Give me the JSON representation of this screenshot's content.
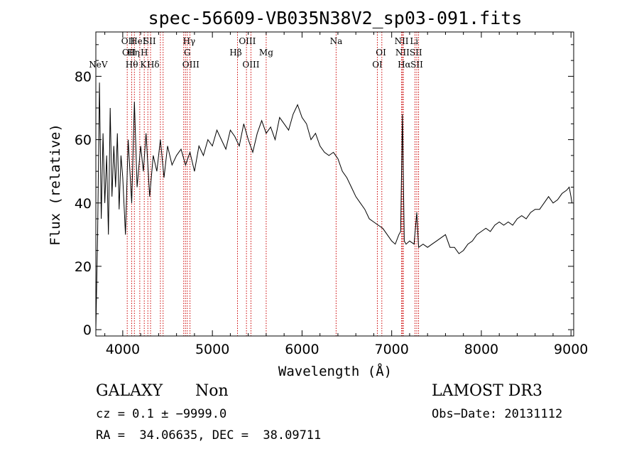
{
  "chart_data": {
    "type": "line",
    "title": "spec-56609-VB035N38V2_sp03-091.fits",
    "xlabel": "Wavelength (Å)",
    "ylabel": "Flux (relative)",
    "xlim": [
      3700,
      9030
    ],
    "ylim": [
      -2,
      94
    ],
    "xticks": [
      4000,
      5000,
      6000,
      7000,
      8000,
      9000
    ],
    "yticks": [
      0,
      20,
      40,
      60,
      80
    ],
    "spectrum": {
      "name": "flux",
      "x": [
        3700,
        3720,
        3740,
        3760,
        3780,
        3800,
        3820,
        3840,
        3860,
        3880,
        3900,
        3920,
        3940,
        3960,
        3980,
        4000,
        4030,
        4060,
        4100,
        4130,
        4160,
        4200,
        4230,
        4260,
        4300,
        4340,
        4380,
        4420,
        4460,
        4500,
        4550,
        4600,
        4650,
        4700,
        4750,
        4800,
        4850,
        4900,
        4950,
        5000,
        5050,
        5100,
        5150,
        5200,
        5250,
        5300,
        5350,
        5400,
        5450,
        5500,
        5550,
        5600,
        5650,
        5700,
        5750,
        5800,
        5850,
        5900,
        5950,
        6000,
        6050,
        6100,
        6150,
        6200,
        6250,
        6300,
        6350,
        6400,
        6450,
        6500,
        6550,
        6600,
        6650,
        6700,
        6750,
        6800,
        6850,
        6900,
        6950,
        7000,
        7040,
        7080,
        7100,
        7120,
        7140,
        7160,
        7200,
        7250,
        7280,
        7300,
        7350,
        7400,
        7450,
        7500,
        7550,
        7600,
        7650,
        7700,
        7750,
        7800,
        7850,
        7900,
        7950,
        8000,
        8050,
        8100,
        8150,
        8200,
        8250,
        8300,
        8350,
        8400,
        8450,
        8500,
        8550,
        8600,
        8650,
        8700,
        8750,
        8800,
        8850,
        8900,
        8950,
        8980,
        9000,
        9010
      ],
      "y": [
        0,
        30,
        78,
        35,
        62,
        40,
        55,
        30,
        70,
        42,
        58,
        45,
        62,
        38,
        55,
        48,
        30,
        60,
        40,
        72,
        45,
        58,
        50,
        62,
        42,
        55,
        50,
        60,
        48,
        58,
        52,
        55,
        57,
        52,
        56,
        50,
        58,
        55,
        60,
        58,
        63,
        60,
        57,
        63,
        61,
        58,
        65,
        60,
        56,
        62,
        66,
        62,
        64,
        60,
        67,
        65,
        63,
        68,
        71,
        67,
        65,
        60,
        62,
        58,
        56,
        55,
        56,
        54,
        50,
        48,
        45,
        42,
        40,
        38,
        35,
        34,
        33,
        32,
        30,
        28,
        27,
        30,
        31,
        68,
        28,
        27,
        28,
        27,
        37,
        26,
        27,
        26,
        27,
        28,
        29,
        30,
        26,
        26,
        24,
        25,
        27,
        28,
        30,
        31,
        32,
        31,
        33,
        34,
        33,
        34,
        33,
        35,
        36,
        35,
        37,
        38,
        38,
        40,
        42,
        40,
        41,
        43,
        44,
        45,
        42,
        40
      ]
    },
    "emission_lines": [
      {
        "label": "NeV",
        "x": 3727,
        "row": 3
      },
      {
        "label": "OII",
        "x": 4060,
        "row": 1
      },
      {
        "label": "OII",
        "x": 4070,
        "row": 2
      },
      {
        "label": "Hθ",
        "x": 4101,
        "row": 3
      },
      {
        "label": "Hη",
        "x": 4120,
        "row": 2
      },
      {
        "label": "HeI",
        "x": 4170,
        "row": 1
      },
      {
        "label": "H",
        "x": 4240,
        "row": 2
      },
      {
        "label": "K",
        "x": 4230,
        "row": 3
      },
      {
        "label": "SII",
        "x": 4300,
        "row": 1
      },
      {
        "label": "Hδ",
        "x": 4340,
        "row": 3
      },
      {
        "label": "Hγ",
        "x": 4740,
        "row": 1
      },
      {
        "label": "G",
        "x": 4720,
        "row": 2
      },
      {
        "label": "OIII",
        "x": 4760,
        "row": 3
      },
      {
        "label": "OIII",
        "x": 5390,
        "row": 1
      },
      {
        "label": "Hβ",
        "x": 5260,
        "row": 2
      },
      {
        "label": "OIII",
        "x": 5430,
        "row": 3
      },
      {
        "label": "Mg",
        "x": 5600,
        "row": 2
      },
      {
        "label": "Na",
        "x": 6380,
        "row": 1
      },
      {
        "label": "OI",
        "x": 6880,
        "row": 2
      },
      {
        "label": "OI",
        "x": 6840,
        "row": 3
      },
      {
        "label": "NII",
        "x": 7110,
        "row": 1
      },
      {
        "label": "NII",
        "x": 7120,
        "row": 2
      },
      {
        "label": "Hα",
        "x": 7140,
        "row": 3
      },
      {
        "label": "SII",
        "x": 7270,
        "row": 2
      },
      {
        "label": "SII",
        "x": 7280,
        "row": 3
      },
      {
        "label": "Li",
        "x": 7250,
        "row": 1
      }
    ],
    "line_markers_x": [
      4050,
      4100,
      4130,
      4190,
      4240,
      4280,
      4310,
      4420,
      4450,
      4680,
      4700,
      4720,
      4750,
      5280,
      5380,
      5430,
      5600,
      6380,
      6840,
      6890,
      7110,
      7120,
      7130,
      7260,
      7280,
      7300
    ]
  },
  "info": {
    "class": "GALAXY",
    "subclass": "Non",
    "survey": "LAMOST DR3",
    "cz": "cz = 0.1 ± −9999.0",
    "obs_date": "Obs−Date: 20131112",
    "coords": "RA =  34.06635, DEC =  38.09711"
  },
  "colors": {
    "spectrum": "#000000",
    "line_marker": "#cc0000",
    "axes": "#000000"
  }
}
